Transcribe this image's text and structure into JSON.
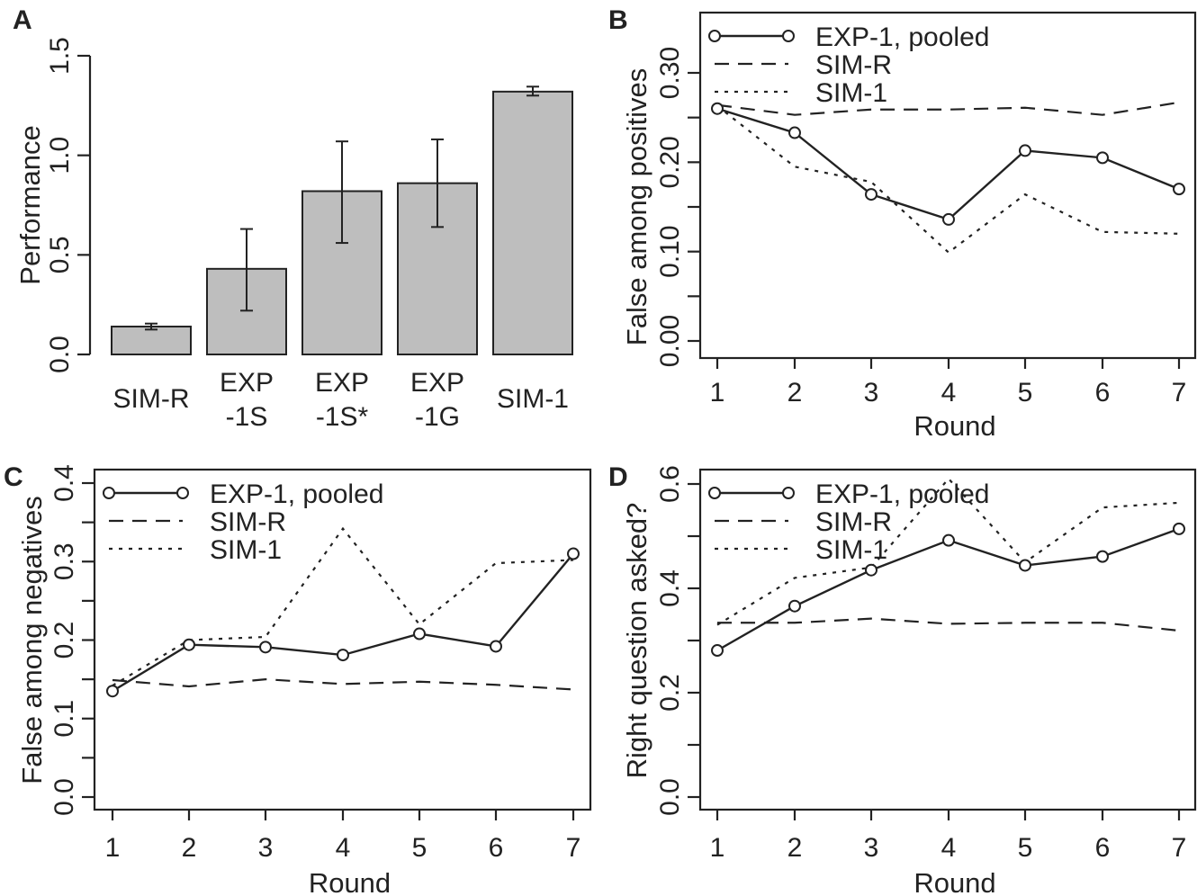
{
  "chart_data": [
    {
      "panel": "A",
      "type": "bar",
      "ylabel": "Performance",
      "ylim": [
        0,
        1.5
      ],
      "yticks": [
        "0.0",
        "0.5",
        "1.0",
        "1.5"
      ],
      "categories": [
        [
          "SIM-R"
        ],
        [
          "EXP",
          "-1S"
        ],
        [
          "EXP",
          "-1S*"
        ],
        [
          "EXP",
          "-1G"
        ],
        [
          "SIM-1"
        ]
      ],
      "values": [
        0.14,
        0.43,
        0.82,
        0.86,
        1.32
      ],
      "error_low": [
        0.125,
        0.22,
        0.56,
        0.64,
        1.3
      ],
      "error_high": [
        0.155,
        0.63,
        1.07,
        1.08,
        1.345
      ]
    },
    {
      "panel": "B",
      "type": "line",
      "xlabel": "Round",
      "ylabel": "False among positives",
      "x": [
        1,
        2,
        3,
        4,
        5,
        6,
        7
      ],
      "ylim": [
        0,
        0.3
      ],
      "yticks": [
        "0.00",
        "0.10",
        "0.20",
        "0.30"
      ],
      "legend_position": "top-left",
      "series": [
        {
          "name": "EXP-1, pooled",
          "style": "solid-circles",
          "values": [
            0.26,
            0.233,
            0.164,
            0.136,
            0.213,
            0.205,
            0.17
          ]
        },
        {
          "name": "SIM-R",
          "style": "dashed",
          "values": [
            0.264,
            0.253,
            0.259,
            0.259,
            0.261,
            0.253,
            0.267
          ]
        },
        {
          "name": "SIM-1",
          "style": "dotted",
          "values": [
            0.263,
            0.195,
            0.178,
            0.099,
            0.164,
            0.122,
            0.12
          ]
        }
      ]
    },
    {
      "panel": "C",
      "type": "line",
      "xlabel": "Round",
      "ylabel": "False among negatives",
      "x": [
        1,
        2,
        3,
        4,
        5,
        6,
        7
      ],
      "ylim": [
        0,
        0.4
      ],
      "yticks": [
        "0.0",
        "0.1",
        "0.2",
        "0.3",
        "0.4"
      ],
      "legend_position": "top-left",
      "series": [
        {
          "name": "EXP-1, pooled",
          "style": "solid-circles",
          "values": [
            0.135,
            0.194,
            0.191,
            0.181,
            0.208,
            0.192,
            0.31
          ]
        },
        {
          "name": "SIM-R",
          "style": "dashed",
          "values": [
            0.149,
            0.141,
            0.15,
            0.144,
            0.147,
            0.143,
            0.137
          ]
        },
        {
          "name": "SIM-1",
          "style": "dotted",
          "values": [
            0.142,
            0.2,
            0.204,
            0.342,
            0.22,
            0.298,
            0.302
          ]
        }
      ]
    },
    {
      "panel": "D",
      "type": "line",
      "xlabel": "Round",
      "ylabel": "Right question asked?",
      "x": [
        1,
        2,
        3,
        4,
        5,
        6,
        7
      ],
      "ylim": [
        0,
        0.6
      ],
      "yticks": [
        "0.0",
        "0.2",
        "0.4",
        "0.6"
      ],
      "legend_position": "top-left",
      "series": [
        {
          "name": "EXP-1, pooled",
          "style": "solid-circles",
          "values": [
            0.281,
            0.366,
            0.435,
            0.492,
            0.444,
            0.461,
            0.514
          ]
        },
        {
          "name": "SIM-R",
          "style": "dashed",
          "values": [
            0.334,
            0.334,
            0.342,
            0.332,
            0.334,
            0.334,
            0.319
          ]
        },
        {
          "name": "SIM-1",
          "style": "dotted",
          "values": [
            0.33,
            0.42,
            0.44,
            0.61,
            0.45,
            0.555,
            0.564
          ]
        }
      ]
    }
  ]
}
